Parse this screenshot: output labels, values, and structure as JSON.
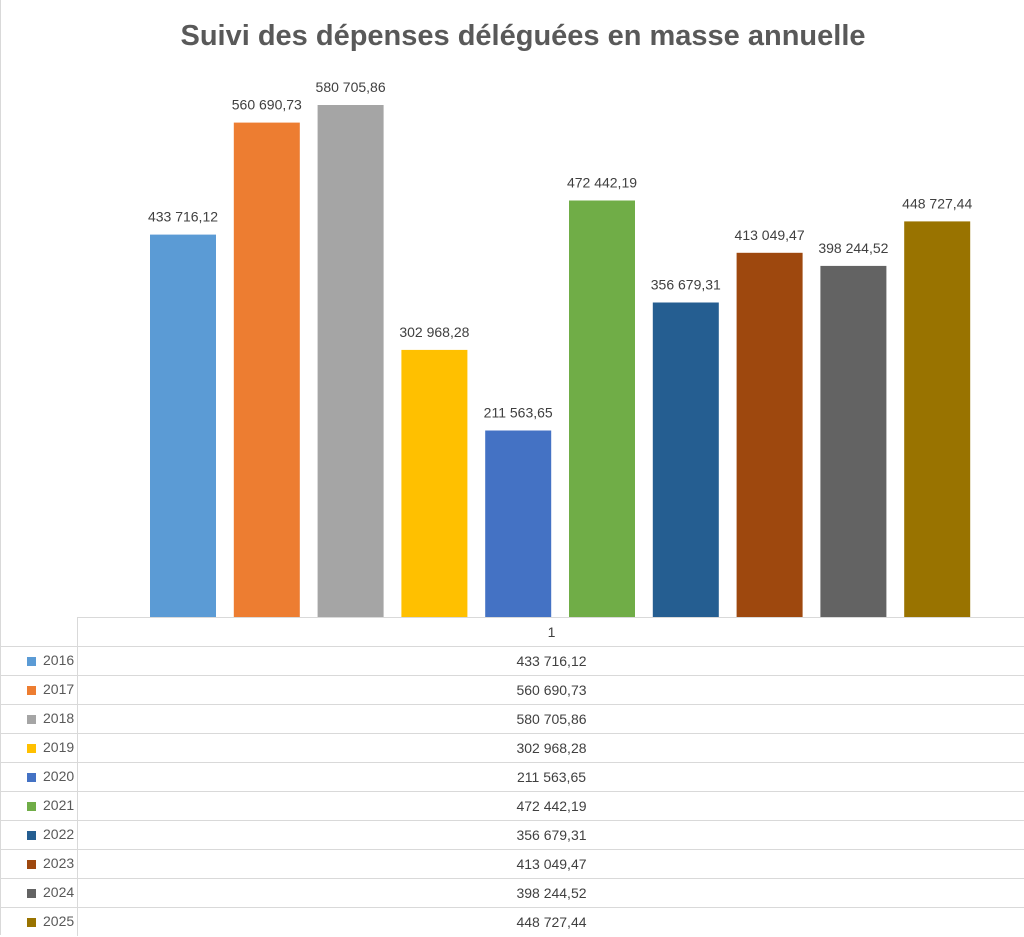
{
  "chart_data": {
    "type": "bar",
    "title": "Suivi des dépenses déléguées en masse annuelle",
    "category": "1",
    "ylim": [
      0,
      620000
    ],
    "grid": false,
    "legend": "data table below chart",
    "series": [
      {
        "name": "2016",
        "value": 433716.12,
        "label": "433 716,12",
        "color": "#5B9BD5"
      },
      {
        "name": "2017",
        "value": 560690.73,
        "label": "560 690,73",
        "color": "#ED7D31"
      },
      {
        "name": "2018",
        "value": 580705.86,
        "label": "580 705,86",
        "color": "#A5A5A5"
      },
      {
        "name": "2019",
        "value": 302968.28,
        "label": "302 968,28",
        "color": "#FFC000"
      },
      {
        "name": "2020",
        "value": 211563.65,
        "label": "211 563,65",
        "color": "#4472C4"
      },
      {
        "name": "2021",
        "value": 472442.19,
        "label": "472 442,19",
        "color": "#70AD47"
      },
      {
        "name": "2022",
        "value": 356679.31,
        "label": "356 679,31",
        "color": "#255E91"
      },
      {
        "name": "2023",
        "value": 413049.47,
        "label": "413 049,47",
        "color": "#9E480E"
      },
      {
        "name": "2024",
        "value": 398244.52,
        "label": "398 244,52",
        "color": "#636363"
      },
      {
        "name": "2025",
        "value": 448727.44,
        "label": "448 727,44",
        "color": "#997300"
      }
    ]
  }
}
